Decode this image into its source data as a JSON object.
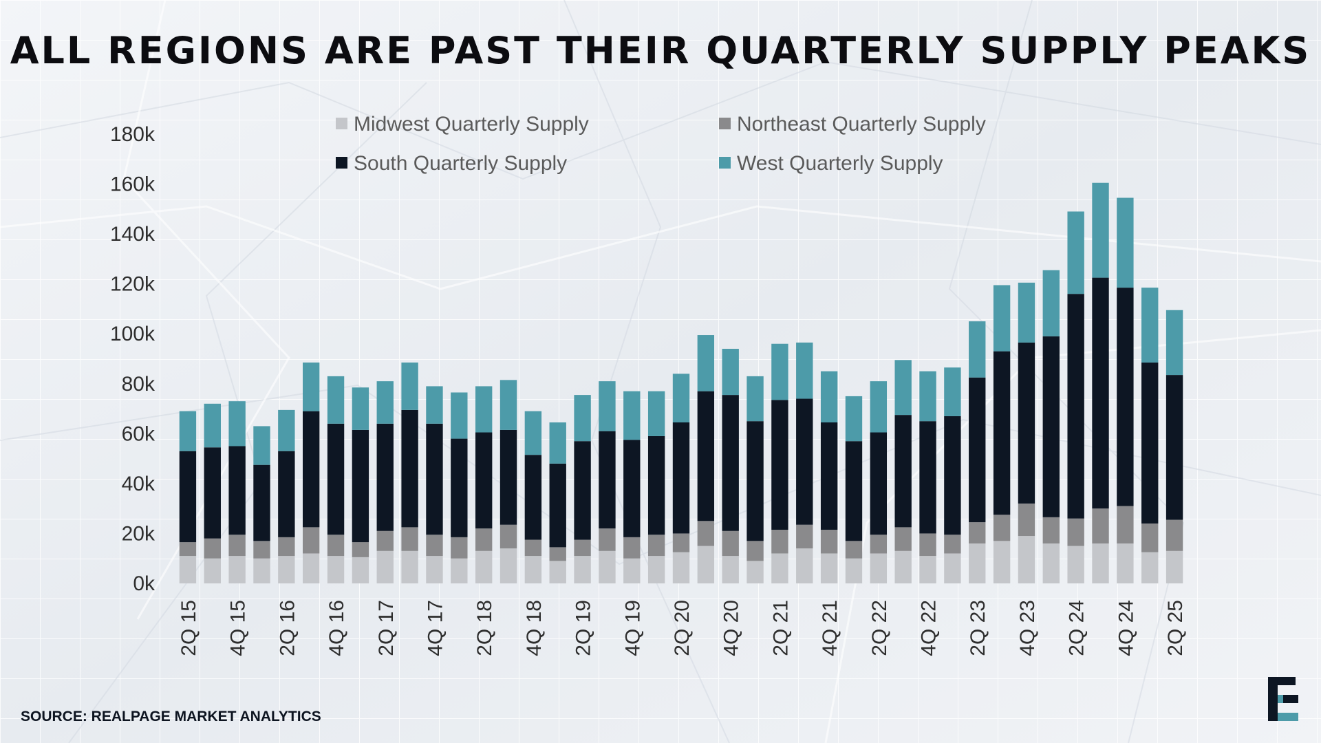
{
  "title": "ALL REGIONS ARE PAST THEIR QUARTERLY SUPPLY PEAKS",
  "source": "SOURCE: REALPAGE MARKET ANALYTICS",
  "logo": "company-logo-icon",
  "colors": {
    "midwest": "#c4c6ca",
    "northeast": "#8a8a8c",
    "south": "#0d1623",
    "west": "#4d9ba9",
    "text": "#2e2e2e"
  },
  "chart_data": {
    "type": "bar",
    "stacked": true,
    "title": "",
    "xlabel": "",
    "ylabel": "",
    "ylim": [
      0,
      180000
    ],
    "y_ticks": [
      "0k",
      "20k",
      "40k",
      "60k",
      "80k",
      "100k",
      "120k",
      "140k",
      "160k",
      "180k"
    ],
    "legend_placement": "top",
    "grid": false,
    "categories": [
      "2Q 15",
      "3Q 15",
      "4Q 15",
      "1Q 16",
      "2Q 16",
      "3Q 16",
      "4Q 16",
      "1Q 17",
      "2Q 17",
      "3Q 17",
      "4Q 17",
      "1Q 18",
      "2Q 18",
      "3Q 18",
      "4Q 18",
      "1Q 19",
      "2Q 19",
      "3Q 19",
      "4Q 19",
      "1Q 20",
      "2Q 20",
      "3Q 20",
      "4Q 20",
      "1Q 21",
      "2Q 21",
      "3Q 21",
      "4Q 21",
      "1Q 22",
      "2Q 22",
      "3Q 22",
      "4Q 22",
      "1Q 23",
      "2Q 23",
      "3Q 23",
      "4Q 23",
      "1Q 24",
      "2Q 24",
      "3Q 24",
      "4Q 24",
      "1Q 25",
      "2Q 25"
    ],
    "x_tick_labels": [
      "2Q 15",
      "4Q 15",
      "2Q 16",
      "4Q 16",
      "2Q 17",
      "4Q 17",
      "2Q 18",
      "4Q 18",
      "2Q 19",
      "4Q 19",
      "2Q 20",
      "4Q 20",
      "2Q 21",
      "4Q 21",
      "2Q 22",
      "4Q 22",
      "2Q 23",
      "4Q 23",
      "2Q 24",
      "4Q 24",
      "2Q 25"
    ],
    "series": [
      {
        "name": "Midwest Quarterly Supply",
        "key": "midwest",
        "values": [
          11000,
          10000,
          11000,
          10000,
          11000,
          12000,
          11000,
          10500,
          13000,
          13000,
          11000,
          10000,
          13000,
          14000,
          11000,
          9000,
          11000,
          13000,
          10000,
          11000,
          12500,
          15000,
          11000,
          9000,
          12000,
          14000,
          12000,
          10000,
          12000,
          13000,
          11000,
          12000,
          16000,
          17000,
          19000,
          16000,
          15000,
          16000,
          16000,
          12500,
          13000
        ]
      },
      {
        "name": "Northeast Quarterly Supply",
        "key": "northeast",
        "values": [
          5500,
          8000,
          8500,
          7000,
          7500,
          10500,
          8500,
          6000,
          8000,
          9500,
          8500,
          8500,
          9000,
          9500,
          6500,
          5500,
          6500,
          9000,
          8500,
          8500,
          7500,
          10000,
          10000,
          8000,
          9500,
          9500,
          9500,
          7000,
          7500,
          9500,
          9000,
          7500,
          8500,
          10500,
          13000,
          10500,
          11000,
          14000,
          15000,
          11500,
          12500
        ]
      },
      {
        "name": "South Quarterly Supply",
        "key": "south",
        "values": [
          36500,
          36500,
          35500,
          30500,
          34500,
          46500,
          44500,
          45000,
          43000,
          47000,
          44500,
          39500,
          38500,
          38000,
          34000,
          33500,
          39500,
          39000,
          39000,
          39500,
          44500,
          52000,
          54500,
          48000,
          52000,
          50500,
          43000,
          40000,
          41000,
          45000,
          45000,
          47500,
          58000,
          65500,
          64500,
          72500,
          90000,
          92500,
          87500,
          64500,
          58000
        ]
      },
      {
        "name": "West Quarterly Supply",
        "key": "west",
        "values": [
          16000,
          17500,
          18000,
          15500,
          16500,
          19500,
          19000,
          17000,
          17000,
          19000,
          15000,
          18500,
          18500,
          20000,
          17500,
          16500,
          18500,
          20000,
          19500,
          18000,
          19500,
          22500,
          18500,
          18000,
          22500,
          22500,
          20500,
          18000,
          20500,
          22000,
          20000,
          19500,
          22500,
          26500,
          24000,
          26500,
          33000,
          38000,
          36000,
          30000,
          26000
        ]
      }
    ]
  }
}
